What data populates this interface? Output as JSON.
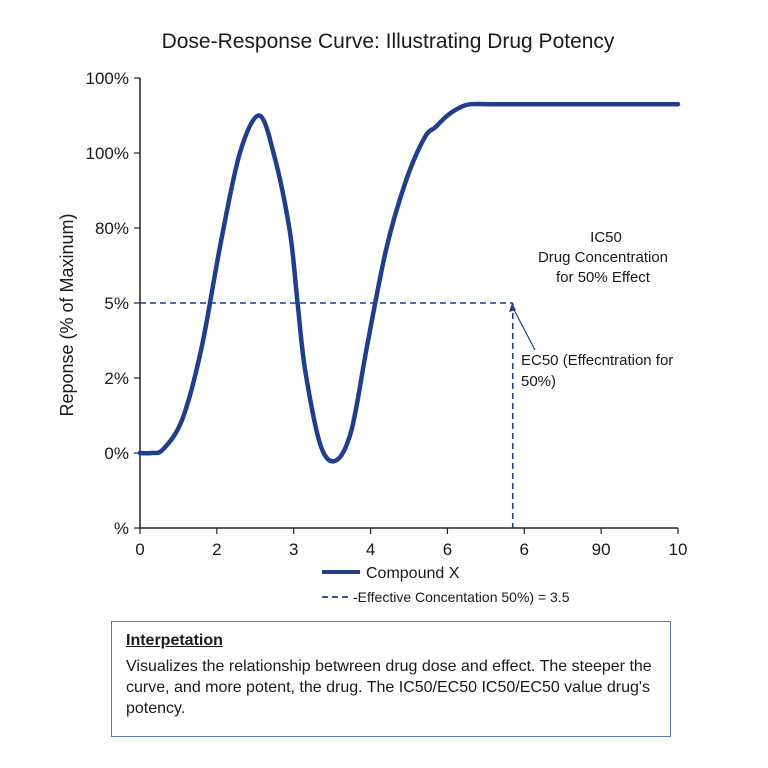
{
  "chart_data": {
    "type": "line",
    "title": "Dose-Response Curve: Illustrating Drug Potency",
    "ylabel": "Reponse (% of Maxinum)",
    "xlabel": "",
    "x_tick_labels": [
      "0",
      "2",
      "3",
      "4",
      "6",
      "6",
      "90",
      "10"
    ],
    "y_tick_labels": [
      "%",
      "0%",
      "2%",
      "5%",
      "80%",
      "100%",
      "100%"
    ],
    "xlim": [
      0,
      7
    ],
    "ylim": [
      0,
      6
    ],
    "grid": false,
    "series": [
      {
        "name": "Compound X",
        "color": "#1f3f8a",
        "x": [
          0.0,
          0.15,
          0.3,
          0.55,
          0.8,
          1.05,
          1.3,
          1.55,
          1.75,
          1.95,
          2.05,
          2.15,
          2.35,
          2.55,
          2.75,
          2.95,
          3.2,
          3.45,
          3.7,
          3.85,
          4.0,
          4.15,
          4.3,
          4.6,
          4.9,
          5.2,
          5.45,
          5.65,
          5.85,
          6.05,
          6.3,
          6.6,
          7.0
        ],
        "y": [
          1.0,
          1.0,
          1.05,
          1.45,
          2.4,
          3.8,
          5.0,
          5.5,
          4.95,
          3.95,
          3.0,
          2.1,
          1.1,
          0.9,
          1.3,
          2.4,
          3.7,
          4.6,
          5.2,
          5.35,
          5.5,
          5.6,
          5.65,
          5.65,
          5.65,
          5.65,
          5.65,
          5.65,
          5.65,
          5.65,
          5.65,
          5.65,
          5.65
        ]
      }
    ],
    "reference": {
      "x": 4.85,
      "y": 3.0,
      "color": "#1f3f8a",
      "legend_label": "-Effective Concentation 50%) = 3.5"
    },
    "annotations": {
      "ic50_lines": [
        "IC50",
        "Drug Concentration",
        "for 50% Effect"
      ],
      "ec50_lines": [
        "EC50 (Effecntration for",
        "50%)"
      ]
    },
    "legend": {
      "placement": "bottom",
      "items": [
        "Compound X",
        "-Effective Concentation 50%) = 3.5"
      ]
    }
  },
  "interpretation": {
    "title": "Interpetation",
    "body": "Visualizes the relationship betwreen drug dose and effect. The steeper the curve, and more potent, the drug. The IC50/EC50 IC50/EC50 value drug's potency."
  }
}
